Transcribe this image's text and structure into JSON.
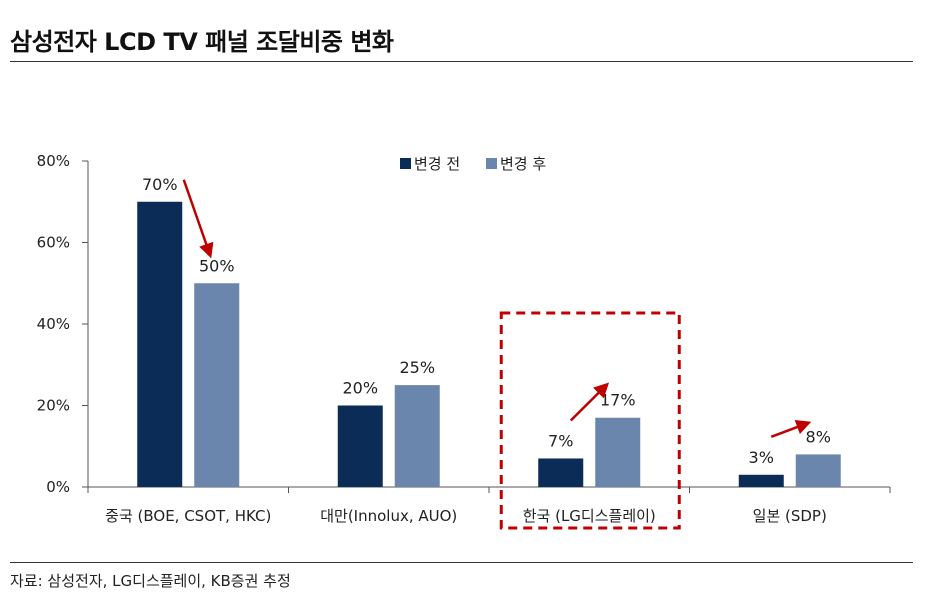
{
  "title": "삼성전자 LCD TV 패널 조달비중 변화",
  "source": "자료: 삼성전자, LG디스플레이, KB증권 추정",
  "colors": {
    "before": "#0b2c57",
    "after": "#6a86ac",
    "arrow": "#c00000",
    "highlight_box": "#c00000",
    "axis": "#555555"
  },
  "chart_data": {
    "type": "bar",
    "categories": [
      "중국 (BOE, CSOT, HKC)",
      "대만(Innolux, AUO)",
      "한국 (LG디스플레이)",
      "일본 (SDP)"
    ],
    "series": [
      {
        "name": "변경 전",
        "values": [
          70,
          20,
          7,
          3
        ],
        "labels": [
          "70%",
          "20%",
          "7%",
          "3%"
        ]
      },
      {
        "name": "변경 후",
        "values": [
          50,
          25,
          17,
          8
        ],
        "labels": [
          "50%",
          "25%",
          "17%",
          "8%"
        ]
      }
    ],
    "ylim": [
      0,
      80
    ],
    "yticks": [
      0,
      20,
      40,
      60,
      80
    ],
    "ytick_labels": [
      "0%",
      "20%",
      "40%",
      "60%",
      "80%"
    ],
    "legend_position": "top-center",
    "grid": false,
    "highlighted_category": "한국 (LG디스플레이)",
    "arrows_from_before_to_after": [
      true,
      false,
      true,
      true
    ]
  }
}
